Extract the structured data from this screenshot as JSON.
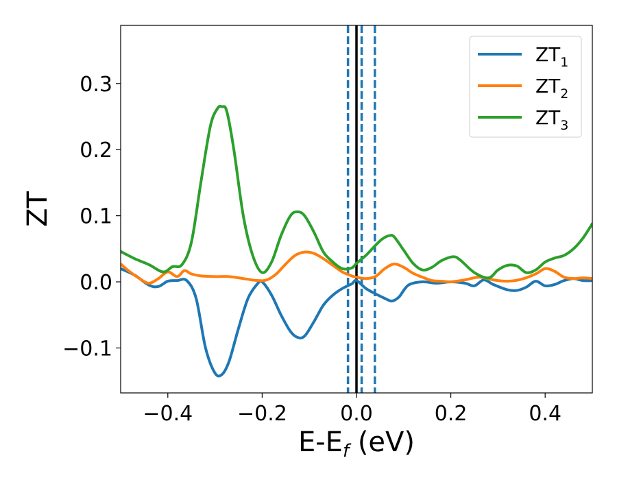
{
  "chart_data": {
    "type": "line",
    "xlabel": "E-E",
    "xlabel_sub": "f",
    "xlabel_unit": " (eV)",
    "ylabel": "ZT",
    "xlim": [
      -0.5,
      0.5
    ],
    "ylim": [
      -0.168,
      0.388
    ],
    "x_ticks": [
      -0.4,
      -0.2,
      0.0,
      0.2,
      0.4
    ],
    "x_tick_labels": [
      "−0.4",
      "−0.2",
      "0.0",
      "0.2",
      "0.4"
    ],
    "y_ticks": [
      -0.1,
      0.0,
      0.1,
      0.2,
      0.3
    ],
    "y_tick_labels": [
      "−0.1",
      "0.0",
      "0.1",
      "0.2",
      "0.3"
    ],
    "grid": false,
    "legend_position": "top-right",
    "vertical_lines": [
      {
        "x": 0.0,
        "color": "#000000",
        "style": "solid"
      },
      {
        "x": -0.018,
        "color": "#1f77b4",
        "style": "dashed"
      },
      {
        "x": 0.011,
        "color": "#1f77b4",
        "style": "dashed"
      },
      {
        "x": 0.039,
        "color": "#1f77b4",
        "style": "dashed"
      }
    ],
    "series": [
      {
        "name": "ZT",
        "name_sub": "1",
        "color": "#1f77b4",
        "x": [
          -0.5,
          -0.47,
          -0.44,
          -0.42,
          -0.4,
          -0.38,
          -0.36,
          -0.34,
          -0.32,
          -0.3,
          -0.285,
          -0.27,
          -0.25,
          -0.23,
          -0.21,
          -0.2,
          -0.18,
          -0.16,
          -0.14,
          -0.125,
          -0.11,
          -0.09,
          -0.07,
          -0.05,
          -0.03,
          -0.01,
          0.0,
          0.02,
          0.04,
          0.06,
          0.075,
          0.09,
          0.11,
          0.14,
          0.17,
          0.2,
          0.23,
          0.25,
          0.27,
          0.29,
          0.32,
          0.34,
          0.36,
          0.38,
          0.4,
          0.42,
          0.44,
          0.46,
          0.48,
          0.5
        ],
        "y": [
          0.02,
          0.01,
          -0.005,
          -0.007,
          0.001,
          0.002,
          0.002,
          -0.025,
          -0.1,
          -0.138,
          -0.14,
          -0.12,
          -0.07,
          -0.025,
          -0.003,
          0.0,
          -0.02,
          -0.05,
          -0.075,
          -0.084,
          -0.082,
          -0.06,
          -0.035,
          -0.02,
          -0.01,
          -0.003,
          0.002,
          -0.01,
          -0.018,
          -0.025,
          -0.029,
          -0.023,
          -0.005,
          0.0,
          -0.002,
          0.0,
          -0.002,
          -0.006,
          0.003,
          -0.004,
          -0.012,
          -0.013,
          -0.008,
          0.001,
          -0.006,
          -0.004,
          0.002,
          0.005,
          0.002,
          0.002
        ]
      },
      {
        "name": "ZT",
        "name_sub": "2",
        "color": "#ff7f0e",
        "x": [
          -0.5,
          -0.48,
          -0.46,
          -0.44,
          -0.42,
          -0.4,
          -0.38,
          -0.365,
          -0.35,
          -0.33,
          -0.3,
          -0.27,
          -0.24,
          -0.21,
          -0.19,
          -0.17,
          -0.15,
          -0.13,
          -0.11,
          -0.09,
          -0.07,
          -0.05,
          -0.03,
          -0.01,
          0.0,
          0.02,
          0.04,
          0.06,
          0.08,
          0.1,
          0.12,
          0.14,
          0.16,
          0.18,
          0.2,
          0.23,
          0.26,
          0.29,
          0.32,
          0.35,
          0.38,
          0.4,
          0.42,
          0.44,
          0.46,
          0.48,
          0.5
        ],
        "y": [
          0.027,
          0.015,
          0.005,
          -0.002,
          0.005,
          0.015,
          0.008,
          0.017,
          0.012,
          0.009,
          0.008,
          0.008,
          0.005,
          0.002,
          0.003,
          0.012,
          0.027,
          0.04,
          0.045,
          0.043,
          0.035,
          0.025,
          0.015,
          0.009,
          0.007,
          0.005,
          0.008,
          0.02,
          0.027,
          0.022,
          0.013,
          0.007,
          0.002,
          0.001,
          0.0,
          0.003,
          0.007,
          0.003,
          0.001,
          0.004,
          0.012,
          0.02,
          0.016,
          0.007,
          0.005,
          0.006,
          0.005
        ]
      },
      {
        "name": "ZT",
        "name_sub": "3",
        "color": "#2ca02c",
        "x": [
          -0.5,
          -0.47,
          -0.44,
          -0.41,
          -0.39,
          -0.37,
          -0.35,
          -0.33,
          -0.31,
          -0.295,
          -0.285,
          -0.275,
          -0.26,
          -0.24,
          -0.22,
          -0.2,
          -0.18,
          -0.16,
          -0.14,
          -0.125,
          -0.11,
          -0.09,
          -0.07,
          -0.05,
          -0.03,
          -0.01,
          0.0,
          0.02,
          0.04,
          0.055,
          0.07,
          0.08,
          0.1,
          0.12,
          0.14,
          0.16,
          0.18,
          0.205,
          0.22,
          0.25,
          0.28,
          0.3,
          0.32,
          0.34,
          0.36,
          0.38,
          0.4,
          0.42,
          0.44,
          0.46,
          0.48,
          0.5
        ],
        "y": [
          0.046,
          0.035,
          0.026,
          0.015,
          0.023,
          0.026,
          0.06,
          0.15,
          0.235,
          0.262,
          0.265,
          0.258,
          0.2,
          0.1,
          0.04,
          0.014,
          0.03,
          0.07,
          0.1,
          0.106,
          0.1,
          0.075,
          0.045,
          0.03,
          0.02,
          0.021,
          0.028,
          0.04,
          0.055,
          0.065,
          0.07,
          0.068,
          0.048,
          0.028,
          0.018,
          0.022,
          0.032,
          0.038,
          0.033,
          0.014,
          0.006,
          0.018,
          0.025,
          0.024,
          0.014,
          0.018,
          0.03,
          0.036,
          0.04,
          0.05,
          0.066,
          0.088
        ]
      }
    ]
  }
}
